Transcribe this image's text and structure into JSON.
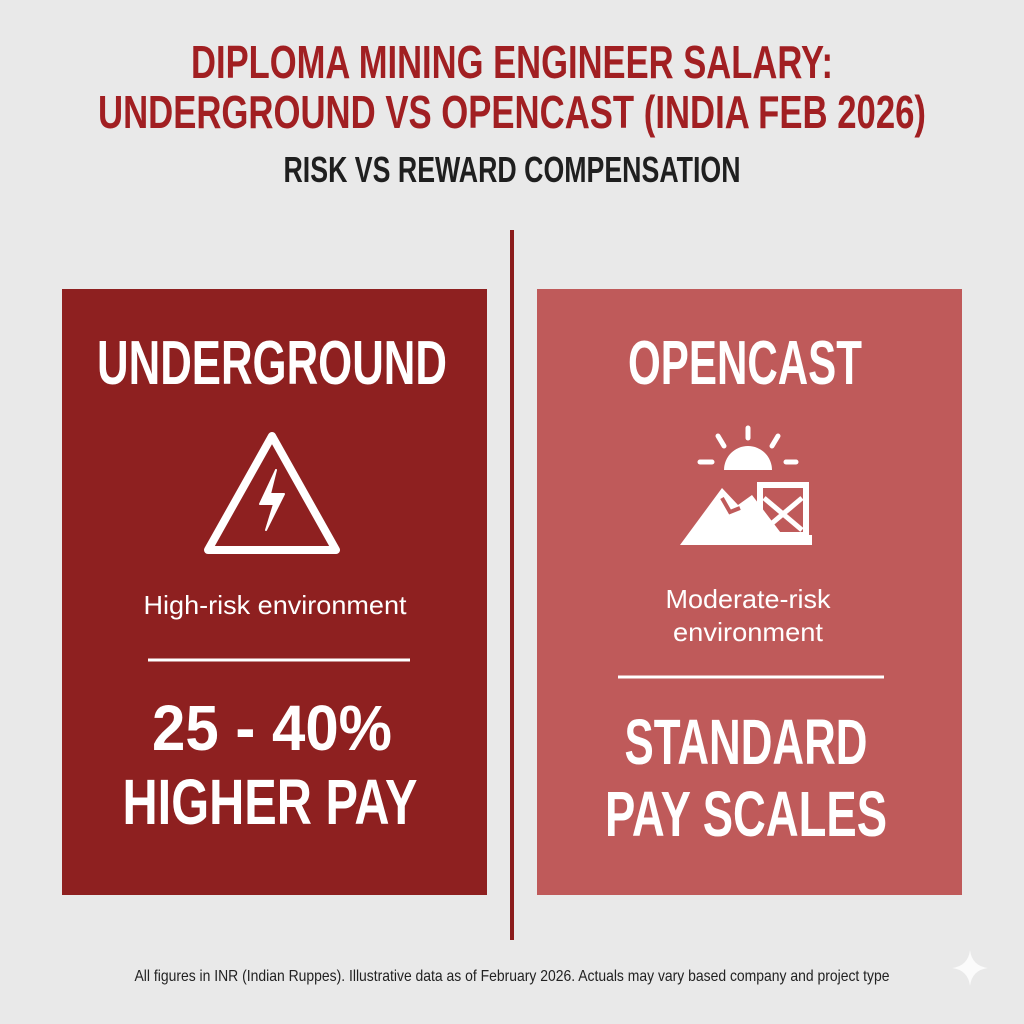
{
  "header": {
    "title_lines": [
      "DIPLOMA MINING ENGINEER SALARY:",
      "UNDERGROUND VS OPENCAST (INDIA FEB 2026)"
    ],
    "subtitle": "RISK VS REWARD COMPENSATION"
  },
  "panels": [
    {
      "heading": "UNDERGROUND",
      "description_lines": [
        "High-risk environment"
      ],
      "pay_lines": [
        "25 - 40%",
        "HIGHER PAY"
      ]
    },
    {
      "heading": "OPENCAST",
      "description_lines": [
        "Moderate-risk",
        "environment"
      ],
      "pay_lines": [
        "STANDARD",
        "PAY SCALES"
      ]
    }
  ],
  "footnote": "All figures in INR (Indian Ruppes). Illustrative data as of February 2026. Actuals may vary based company and project type"
}
